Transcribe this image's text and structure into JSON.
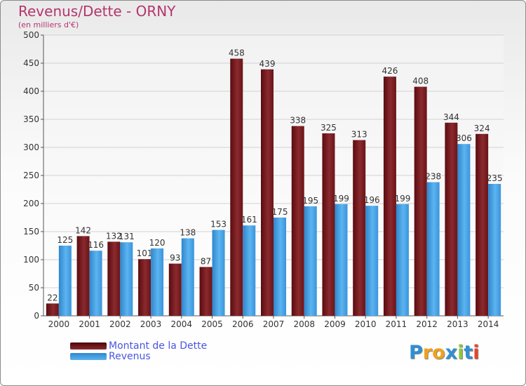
{
  "chart_data": {
    "type": "bar",
    "title": "Revenus/Dette - ORNY",
    "subtitle": "(en milliers d'€)",
    "categories": [
      "2000",
      "2001",
      "2002",
      "2003",
      "2004",
      "2005",
      "2006",
      "2007",
      "2008",
      "2009",
      "2010",
      "2011",
      "2012",
      "2013",
      "2014"
    ],
    "series": [
      {
        "name": "Montant de la Dette",
        "color": "#7b1f24",
        "values": [
          22,
          142,
          132,
          101,
          93,
          87,
          458,
          439,
          338,
          325,
          313,
          426,
          408,
          344,
          324
        ],
        "labels": [
          "22",
          "142",
          "132",
          "101",
          "93",
          "87",
          "458",
          "439",
          "338",
          "325",
          "313",
          "426",
          "408",
          "344",
          "324"
        ]
      },
      {
        "name": "Revenus",
        "color": "#4aa8e8",
        "values": [
          125,
          116,
          131,
          120,
          138,
          153,
          161,
          175,
          195,
          199,
          196,
          199,
          238,
          306,
          235
        ],
        "labels": [
          "125",
          "116",
          "131",
          "120",
          "138",
          "153",
          "161",
          "175",
          "195",
          "199",
          "196",
          "199",
          "238",
          "306",
          "235"
        ]
      }
    ],
    "yticks": [
      "0",
      "50",
      "100",
      "150",
      "200",
      "250",
      "300",
      "350",
      "400",
      "450",
      "500"
    ],
    "ylim": [
      0,
      500
    ],
    "grid": true,
    "legend": "bottom-left"
  },
  "logo": {
    "letters": [
      "P",
      "r",
      "o",
      "x",
      "i",
      "t",
      "i"
    ]
  }
}
